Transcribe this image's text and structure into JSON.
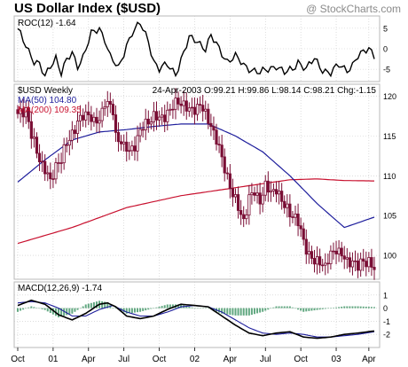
{
  "header": {
    "title": "US Dollar Index ($USD)",
    "brand": "@ StockCharts.com"
  },
  "colors": {
    "price": "#7a0e35",
    "ma50": "#1e1e9c",
    "ma200": "#c8102e",
    "macd": "#000000",
    "signal": "#1e1e9c",
    "histogram": "#2e8b57",
    "panel_border": "#b8b8b8",
    "grid": "#c8c8c8"
  },
  "x_axis": {
    "ticks": [
      {
        "label": "Oct",
        "pos": 0
      },
      {
        "label": "01",
        "pos": 13
      },
      {
        "label": "Apr",
        "pos": 26
      },
      {
        "label": "Jul",
        "pos": 39
      },
      {
        "label": "Oct",
        "pos": 52
      },
      {
        "label": "02",
        "pos": 65
      },
      {
        "label": "Apr",
        "pos": 78
      },
      {
        "label": "Jul",
        "pos": 91
      },
      {
        "label": "Oct",
        "pos": 104
      },
      {
        "label": "03",
        "pos": 117
      },
      {
        "label": "Apr",
        "pos": 129
      }
    ],
    "weeks_total": 132
  },
  "chart_data": [
    {
      "type": "line",
      "panel": "roc",
      "label": "ROC(12) -1.64",
      "ylim": [
        -8,
        8
      ],
      "yticks": [
        "5",
        "0",
        "-5"
      ],
      "ytick_values": [
        5,
        0,
        -5
      ],
      "series": [
        {
          "name": "ROC(12)",
          "color": "#000000",
          "anchors": [
            [
              0,
              4.5
            ],
            [
              3,
              1
            ],
            [
              6,
              -3
            ],
            [
              8,
              -4
            ],
            [
              10,
              -7
            ],
            [
              12,
              -4
            ],
            [
              14,
              -2
            ],
            [
              16,
              -6
            ],
            [
              18,
              -3
            ],
            [
              20,
              -1
            ],
            [
              22,
              -4
            ],
            [
              24,
              -2
            ],
            [
              27,
              3.5
            ],
            [
              30,
              5
            ],
            [
              32,
              2.5
            ],
            [
              34,
              -2
            ],
            [
              37,
              -5
            ],
            [
              40,
              1
            ],
            [
              42,
              4
            ],
            [
              45,
              6
            ],
            [
              48,
              2
            ],
            [
              50,
              -3
            ],
            [
              52,
              -5
            ],
            [
              55,
              -4
            ],
            [
              58,
              -6
            ],
            [
              61,
              -1
            ],
            [
              63,
              2.5
            ],
            [
              66,
              2
            ],
            [
              69,
              0
            ],
            [
              71,
              3
            ],
            [
              74,
              0
            ],
            [
              77,
              -3
            ],
            [
              80,
              -2
            ],
            [
              83,
              -4
            ],
            [
              86,
              -5
            ],
            [
              89,
              -6
            ],
            [
              92,
              -5
            ],
            [
              95,
              -4
            ],
            [
              98,
              -6
            ],
            [
              101,
              -5
            ],
            [
              103,
              -3
            ],
            [
              106,
              -5
            ],
            [
              109,
              -2.5
            ],
            [
              112,
              -5
            ],
            [
              115,
              -6
            ],
            [
              118,
              -4
            ],
            [
              121,
              -5
            ],
            [
              123,
              -4
            ],
            [
              125,
              -2
            ],
            [
              127,
              -1
            ],
            [
              129,
              0.5
            ],
            [
              131,
              -1.64
            ]
          ]
        }
      ]
    },
    {
      "type": "candlestick",
      "panel": "price",
      "label": "$USD Weekly",
      "quote": "24-Apr-2003 O:99.21 H:99.86 L:98.14 C:98.21 Chg:-1.15",
      "ylim": [
        97,
        121.5
      ],
      "yticks": [
        "120",
        "115",
        "110",
        "105",
        "100"
      ],
      "ytick_values": [
        120,
        115,
        110,
        105,
        100
      ],
      "legend": [
        {
          "label": "MA(50) 104.80",
          "color": "#1e1e9c"
        },
        {
          "label": "MA(200) 109.35",
          "color": "#c8102e"
        }
      ],
      "close_anchors": [
        [
          0,
          117.5
        ],
        [
          3,
          118.5
        ],
        [
          5,
          115
        ],
        [
          7,
          113
        ],
        [
          9,
          111.5
        ],
        [
          11,
          110
        ],
        [
          12,
          109
        ],
        [
          14,
          111.5
        ],
        [
          16,
          112
        ],
        [
          18,
          114
        ],
        [
          20,
          115.5
        ],
        [
          22,
          116.5
        ],
        [
          24,
          117.5
        ],
        [
          26,
          118
        ],
        [
          28,
          116.5
        ],
        [
          30,
          117
        ],
        [
          32,
          119.5
        ],
        [
          34,
          118.5
        ],
        [
          35,
          118
        ],
        [
          36,
          115
        ],
        [
          38,
          114.5
        ],
        [
          39,
          113.5
        ],
        [
          41,
          113
        ],
        [
          43,
          114
        ],
        [
          45,
          115.5
        ],
        [
          48,
          117
        ],
        [
          50,
          117.5
        ],
        [
          52,
          117
        ],
        [
          55,
          118
        ],
        [
          57,
          118.5
        ],
        [
          59,
          119.5
        ],
        [
          61,
          119
        ],
        [
          63,
          118
        ],
        [
          65,
          118.5
        ],
        [
          67,
          119
        ],
        [
          69,
          117.5
        ],
        [
          71,
          116.5
        ],
        [
          73,
          114.5
        ],
        [
          75,
          112
        ],
        [
          77,
          110
        ],
        [
          79,
          107.5
        ],
        [
          81,
          106
        ],
        [
          83,
          104.5
        ],
        [
          85,
          107
        ],
        [
          87,
          108
        ],
        [
          89,
          107
        ],
        [
          91,
          108.5
        ],
        [
          93,
          108
        ],
        [
          95,
          108.5
        ],
        [
          97,
          106.5
        ],
        [
          99,
          106
        ],
        [
          101,
          105
        ],
        [
          103,
          104
        ],
        [
          105,
          102
        ],
        [
          107,
          100
        ],
        [
          109,
          99
        ],
        [
          111,
          99.5
        ],
        [
          113,
          98.5
        ],
        [
          115,
          100
        ],
        [
          117,
          101
        ],
        [
          119,
          100
        ],
        [
          121,
          99
        ],
        [
          123,
          99.5
        ],
        [
          125,
          98.5
        ],
        [
          127,
          99.2
        ],
        [
          129,
          99.4
        ],
        [
          131,
          98.21
        ]
      ],
      "ma50_anchors": [
        [
          0,
          109.2
        ],
        [
          10,
          112
        ],
        [
          20,
          114.5
        ],
        [
          30,
          115.5
        ],
        [
          40,
          115.8
        ],
        [
          50,
          116.2
        ],
        [
          60,
          116.5
        ],
        [
          70,
          116.5
        ],
        [
          80,
          115
        ],
        [
          90,
          113
        ],
        [
          100,
          110
        ],
        [
          110,
          106.5
        ],
        [
          120,
          103.5
        ],
        [
          131,
          104.8
        ]
      ],
      "ma200_anchors": [
        [
          0,
          101.5
        ],
        [
          20,
          103.5
        ],
        [
          40,
          106
        ],
        [
          60,
          107.5
        ],
        [
          80,
          108.5
        ],
        [
          100,
          109.5
        ],
        [
          110,
          109.6
        ],
        [
          120,
          109.4
        ],
        [
          131,
          109.35
        ]
      ]
    },
    {
      "type": "line",
      "panel": "macd",
      "label": "MACD(12,26,9) -1.74",
      "ylim": [
        -3,
        2
      ],
      "yticks": [
        "1",
        "0",
        "-1",
        "-2"
      ],
      "ytick_values": [
        1,
        0,
        -1,
        -2
      ],
      "series": [
        {
          "name": "MACD",
          "color": "#000000",
          "anchors": [
            [
              0,
              0.2
            ],
            [
              5,
              0.6
            ],
            [
              10,
              0.3
            ],
            [
              15,
              -0.5
            ],
            [
              20,
              -0.9
            ],
            [
              25,
              -0.4
            ],
            [
              30,
              0.3
            ],
            [
              33,
              0.4
            ],
            [
              36,
              0.1
            ],
            [
              40,
              -0.6
            ],
            [
              45,
              -0.8
            ],
            [
              50,
              -0.6
            ],
            [
              55,
              -0.1
            ],
            [
              60,
              0.3
            ],
            [
              65,
              0.2
            ],
            [
              70,
              0.1
            ],
            [
              75,
              -0.6
            ],
            [
              80,
              -1.3
            ],
            [
              85,
              -1.9
            ],
            [
              90,
              -2.1
            ],
            [
              95,
              -1.9
            ],
            [
              100,
              -1.8
            ],
            [
              105,
              -2.2
            ],
            [
              110,
              -2.3
            ],
            [
              115,
              -2.2
            ],
            [
              120,
              -2.0
            ],
            [
              125,
              -1.9
            ],
            [
              131,
              -1.74
            ]
          ]
        },
        {
          "name": "Signal",
          "color": "#1e1e9c",
          "anchors": [
            [
              0,
              0.4
            ],
            [
              5,
              0.5
            ],
            [
              10,
              0.4
            ],
            [
              15,
              0.0
            ],
            [
              20,
              -0.6
            ],
            [
              25,
              -0.6
            ],
            [
              30,
              -0.1
            ],
            [
              35,
              0.2
            ],
            [
              40,
              -0.3
            ],
            [
              45,
              -0.6
            ],
            [
              50,
              -0.6
            ],
            [
              55,
              -0.3
            ],
            [
              60,
              0.1
            ],
            [
              65,
              0.2
            ],
            [
              70,
              0.1
            ],
            [
              75,
              -0.3
            ],
            [
              80,
              -0.9
            ],
            [
              85,
              -1.5
            ],
            [
              90,
              -1.9
            ],
            [
              95,
              -2.0
            ],
            [
              100,
              -1.9
            ],
            [
              105,
              -2.0
            ],
            [
              110,
              -2.2
            ],
            [
              115,
              -2.2
            ],
            [
              120,
              -2.1
            ],
            [
              125,
              -2.0
            ],
            [
              131,
              -1.8
            ]
          ]
        }
      ]
    }
  ]
}
